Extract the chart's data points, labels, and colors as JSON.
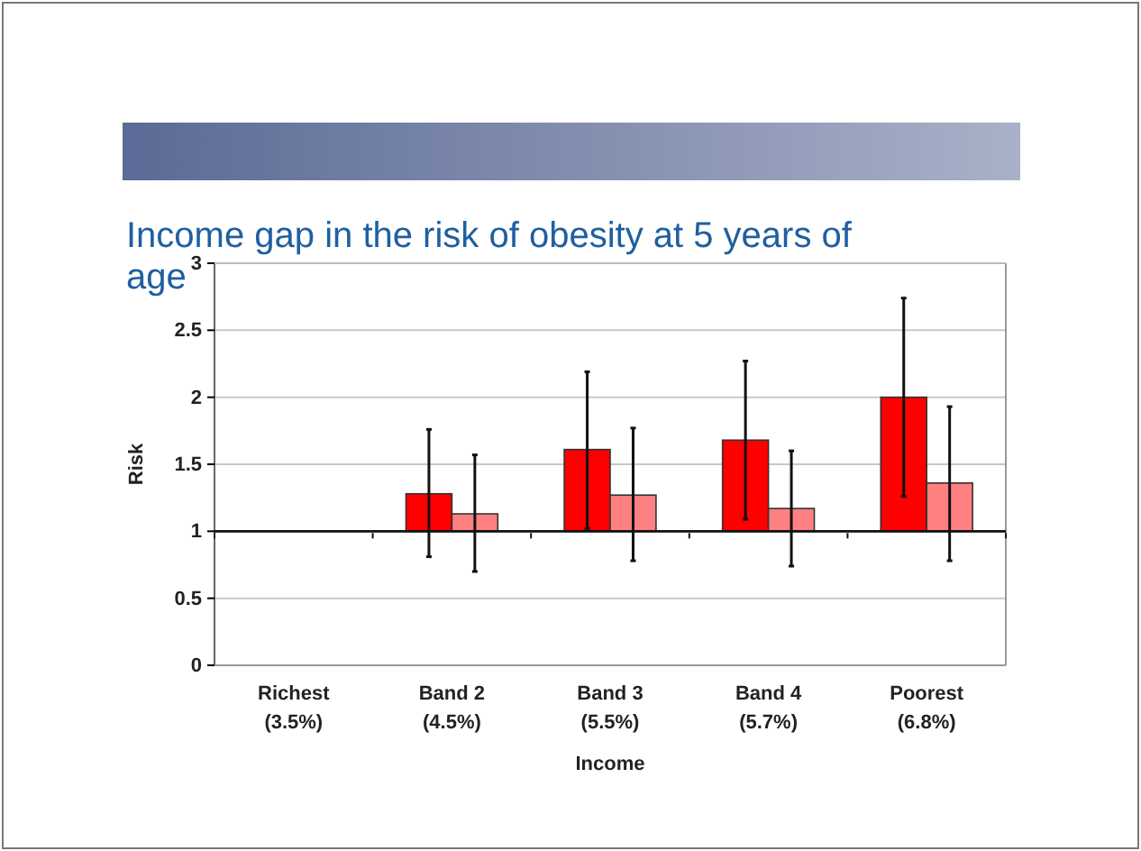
{
  "chart_data": {
    "type": "bar",
    "title": "Income gap in the risk of obesity at 5 years of age",
    "xlabel": "Income",
    "ylabel": "Risk",
    "categories": [
      "Richest\n(3.5%)",
      "Band 2\n(4.5%)",
      "Band 3\n(5.5%)",
      "Band 4\n(5.7%)",
      "Poorest\n(6.8%)"
    ],
    "series": [
      {
        "color": "#ff0000",
        "base": [
          null,
          1,
          1,
          1,
          1
        ],
        "values": [
          null,
          0.28,
          0.61,
          0.68,
          1.0
        ],
        "errors": [
          null,
          [
            0.81,
            1.76
          ],
          [
            1.02,
            2.19
          ],
          [
            1.09,
            2.27
          ],
          [
            1.26,
            2.74
          ]
        ]
      },
      {
        "color": "#ff8080",
        "base": [
          null,
          1,
          1,
          1,
          1
        ],
        "values": [
          null,
          0.13,
          0.27,
          0.17,
          0.36
        ],
        "errors": [
          null,
          [
            0.7,
            1.57
          ],
          [
            0.78,
            1.77
          ],
          [
            0.74,
            1.6
          ],
          [
            0.78,
            1.93
          ]
        ]
      }
    ],
    "ylim": [
      0,
      3
    ],
    "yticks": [
      0,
      0.5,
      1,
      1.5,
      2,
      2.5,
      3
    ],
    "grid": "y",
    "ref_lines": [
      {
        "axis": "y",
        "value": 1,
        "color": "#111111"
      }
    ]
  }
}
